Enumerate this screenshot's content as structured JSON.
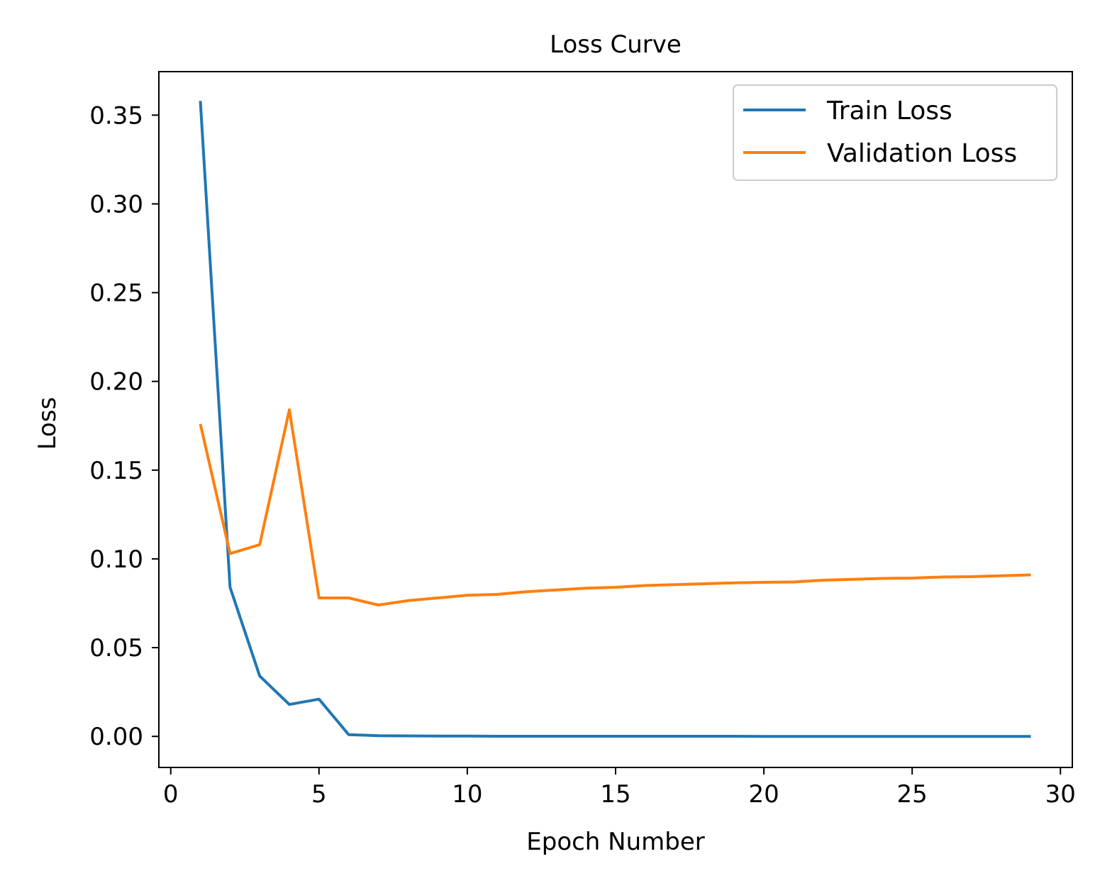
{
  "chart_data": {
    "type": "line",
    "title": "Loss Curve",
    "xlabel": "Epoch Number",
    "ylabel": "Loss",
    "xlim": [
      -0.4,
      30.4
    ],
    "ylim": [
      -0.0175,
      0.3745
    ],
    "xticks": [
      0,
      5,
      10,
      15,
      20,
      25,
      30
    ],
    "xtick_labels": [
      "0",
      "5",
      "10",
      "15",
      "20",
      "25",
      "30"
    ],
    "yticks": [
      0.0,
      0.05,
      0.1,
      0.15,
      0.2,
      0.25,
      0.3,
      0.35
    ],
    "ytick_labels": [
      "0.00",
      "0.05",
      "0.10",
      "0.15",
      "0.20",
      "0.25",
      "0.30",
      "0.35"
    ],
    "grid": false,
    "legend_position": "top-right",
    "x": [
      1,
      2,
      3,
      4,
      5,
      6,
      7,
      8,
      9,
      10,
      11,
      12,
      13,
      14,
      15,
      16,
      17,
      18,
      19,
      20,
      21,
      22,
      23,
      24,
      25,
      26,
      27,
      28,
      29
    ],
    "series": [
      {
        "name": "Train Loss",
        "color": "#1f77b4",
        "values": [
          0.358,
          0.084,
          0.034,
          0.018,
          0.021,
          0.001,
          0.0004,
          0.0003,
          0.0002,
          0.0002,
          0.0001,
          0.0001,
          0.0001,
          0.0001,
          0.0001,
          0.0001,
          0.0001,
          0.0001,
          0.0001,
          0.0,
          0.0,
          0.0,
          0.0,
          0.0,
          0.0,
          0.0,
          0.0,
          0.0,
          0.0
        ]
      },
      {
        "name": "Validation Loss",
        "color": "#ff7f0e",
        "values": [
          0.176,
          0.103,
          0.108,
          0.184,
          0.078,
          0.078,
          0.074,
          0.0765,
          0.078,
          0.0795,
          0.08,
          0.0815,
          0.0825,
          0.0835,
          0.084,
          0.085,
          0.0855,
          0.086,
          0.0865,
          0.0868,
          0.087,
          0.088,
          0.0885,
          0.089,
          0.0892,
          0.0898,
          0.09,
          0.0905,
          0.091
        ]
      }
    ]
  }
}
